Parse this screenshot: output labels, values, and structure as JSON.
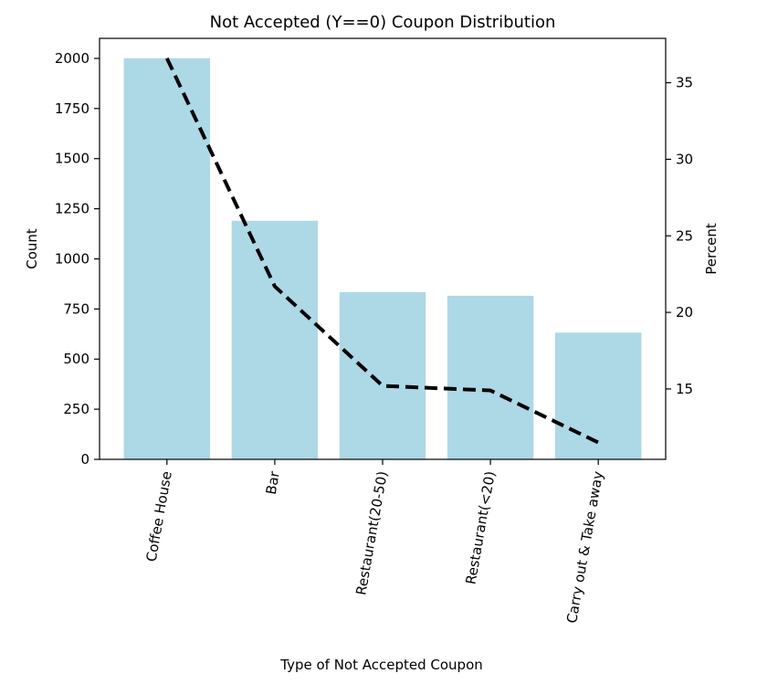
{
  "chart_data": {
    "type": "bar",
    "title": "Not Accepted (Y==0) Coupon Distribution",
    "xlabel": "Type of Not Accepted Coupon",
    "ylabel": "Count",
    "y2label": "Percent",
    "categories": [
      "Coffee House",
      "Bar",
      "Restaurant(20-50)",
      "Restaurant(<20)",
      "Carry out & Take away"
    ],
    "series": [
      {
        "type": "bar",
        "values": [
          2001,
          1190,
          834,
          816,
          632
        ],
        "color": "#add8e6"
      },
      {
        "type": "line",
        "axis": "right",
        "values": [
          36.6,
          21.7,
          15.2,
          14.9,
          11.5
        ],
        "color": "#000000",
        "dashed": true
      }
    ],
    "ylim": [
      0,
      2100
    ],
    "yticks": [
      0,
      250,
      500,
      750,
      1000,
      1250,
      1500,
      1750,
      2000
    ],
    "y2lim": [
      10.4,
      37.9
    ],
    "y2ticks": [
      15,
      20,
      25,
      30,
      35
    ],
    "grid": false
  }
}
